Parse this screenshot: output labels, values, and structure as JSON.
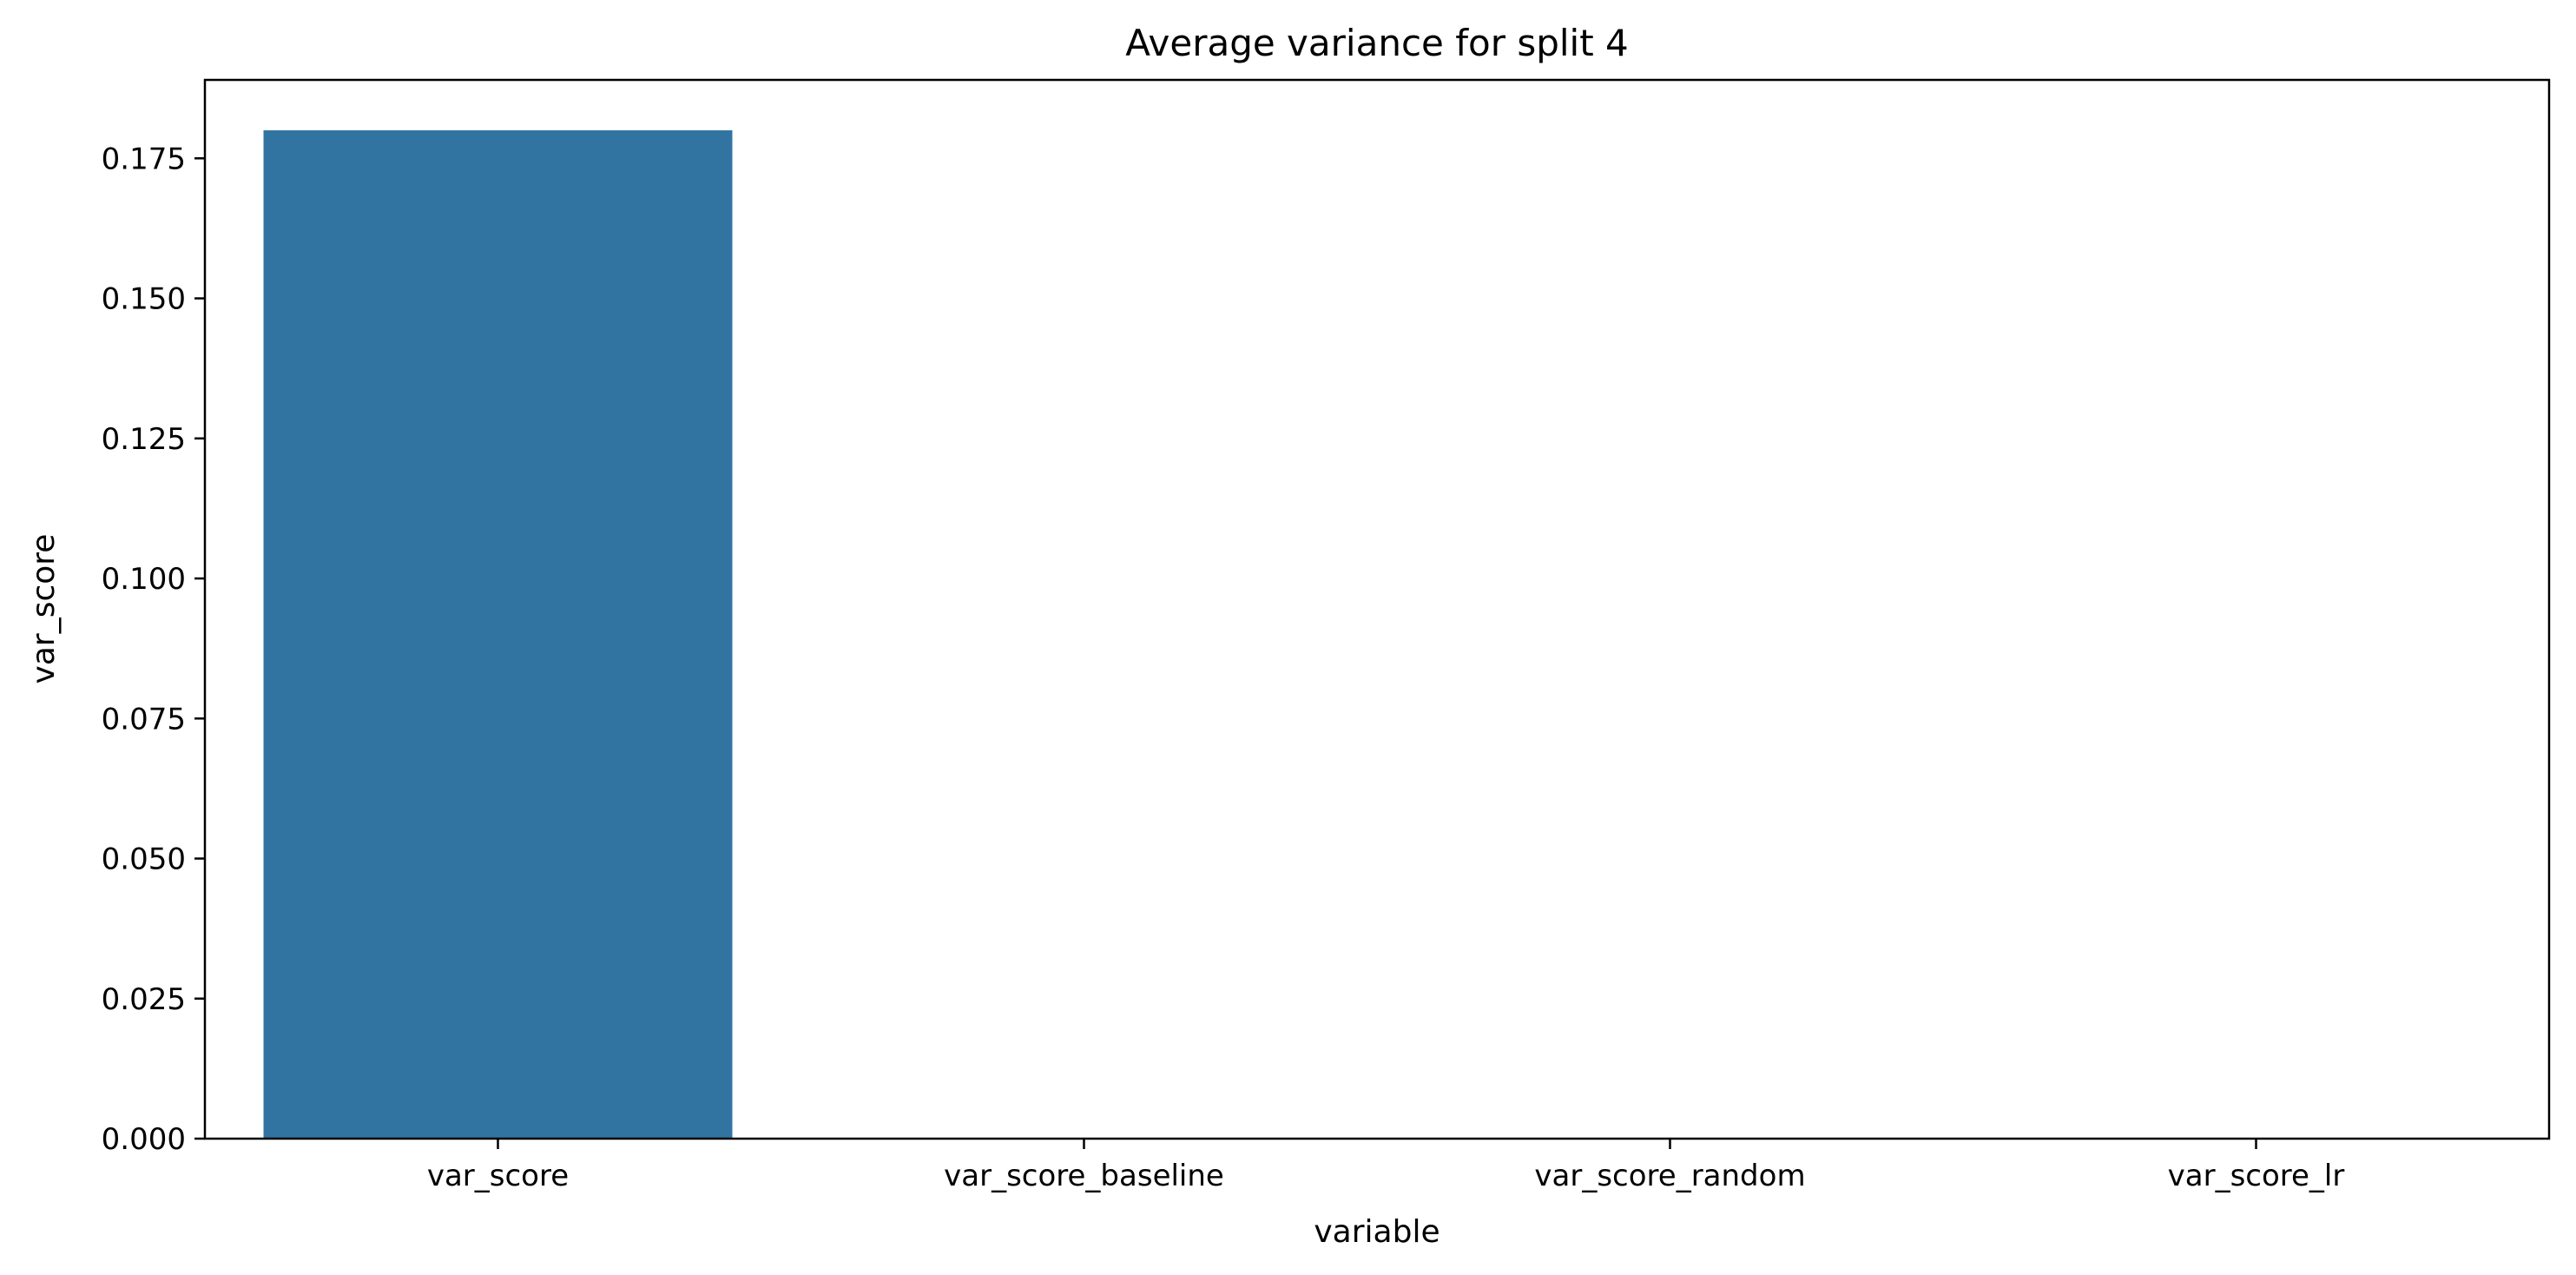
{
  "chart_data": {
    "type": "bar",
    "title": "Average variance for split 4",
    "xlabel": "variable",
    "ylabel": "var_score",
    "categories": [
      "var_score",
      "var_score_baseline",
      "var_score_random",
      "var_score_lr"
    ],
    "values": [
      0.18,
      0,
      0,
      0
    ],
    "ylim": [
      0,
      0.189
    ],
    "yticks": [
      0.0,
      0.025,
      0.05,
      0.075,
      0.1,
      0.125,
      0.15,
      0.175
    ],
    "ytick_labels": [
      "0.000",
      "0.025",
      "0.050",
      "0.075",
      "0.100",
      "0.125",
      "0.150",
      "0.175"
    ],
    "grid": false,
    "legend": "none",
    "bar_color": "#3274a1"
  }
}
